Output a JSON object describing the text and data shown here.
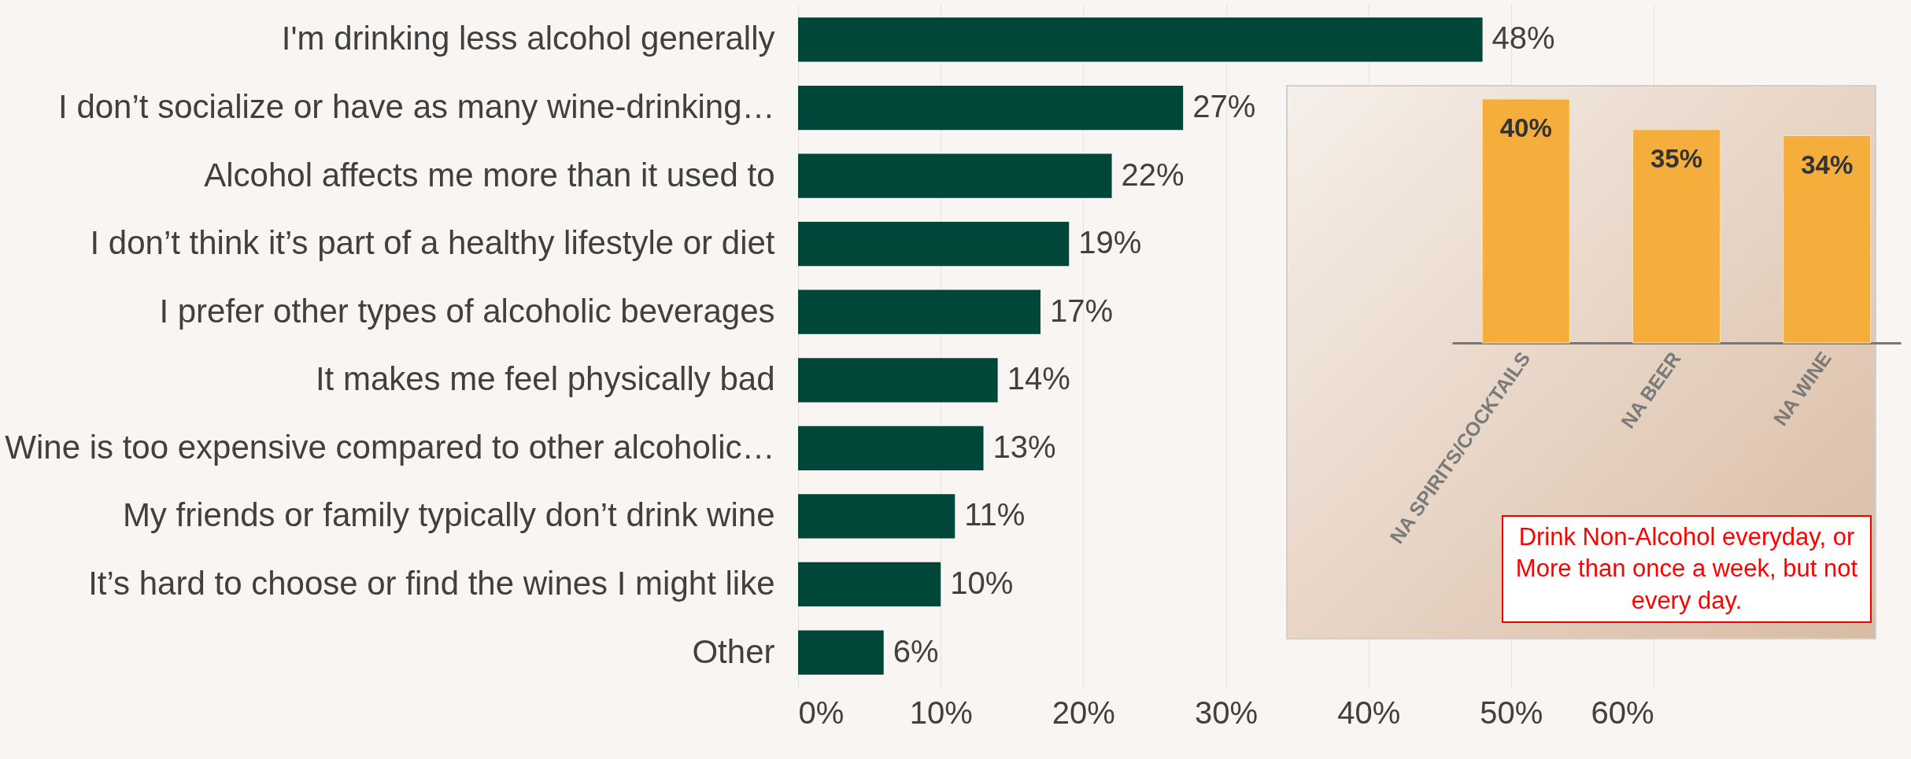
{
  "chart_data": [
    {
      "type": "bar",
      "orientation": "horizontal",
      "categories": [
        "I'm drinking less alcohol generally",
        "I don’t socialize or have as many wine-drinking…",
        "Alcohol affects me more than it used to",
        "I don’t think it’s part of a healthy lifestyle or diet",
        "I prefer other types of alcoholic beverages",
        "It makes me feel physically bad",
        "Wine is too expensive compared to other alcoholic…",
        "My friends or family typically don’t drink wine",
        "It’s hard to choose or find the wines I might like",
        "Other"
      ],
      "values": [
        48,
        27,
        22,
        19,
        17,
        14,
        13,
        11,
        10,
        6
      ],
      "value_labels": [
        "48%",
        "27%",
        "22%",
        "19%",
        "17%",
        "14%",
        "13%",
        "11%",
        "10%",
        "6%"
      ],
      "color": "#00473a",
      "xlim": [
        0,
        60
      ],
      "xticks": [
        {
          "value": 0,
          "label": "0%"
        },
        {
          "value": 10,
          "label": "10%"
        },
        {
          "value": 20,
          "label": "20%"
        },
        {
          "value": 30,
          "label": "30%"
        },
        {
          "value": 40,
          "label": "40%"
        },
        {
          "value": 50,
          "label": "50%"
        },
        {
          "value": 60,
          "label": "60%"
        }
      ],
      "grid": "x"
    },
    {
      "type": "bar",
      "categories": [
        "NA SPIRITS/COCKTAILS",
        "NA BEER",
        "NA WINE"
      ],
      "values": [
        40,
        35,
        34
      ],
      "value_labels": [
        "40%",
        "35%",
        "34%"
      ],
      "color": "#f5ad3c",
      "tick_labels": "x",
      "annotations": [
        "Drink Non-Alcohol everyday, or More than once a week, but not every day."
      ]
    }
  ]
}
